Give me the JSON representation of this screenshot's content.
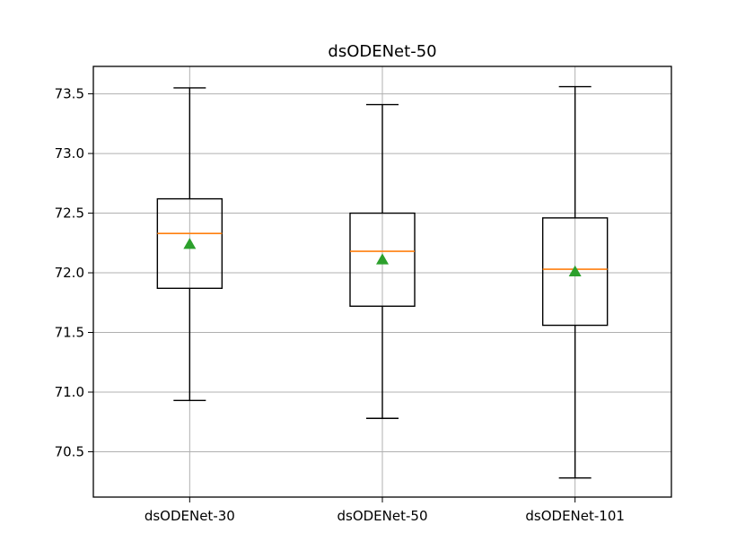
{
  "chart_data": {
    "type": "box",
    "title": "dsODENet-50",
    "xlabel": "",
    "ylabel": "",
    "ylim": [
      70.12,
      73.73
    ],
    "grid": true,
    "yticks": [
      "70.5",
      "71.0",
      "71.5",
      "72.0",
      "72.5",
      "73.0",
      "73.5"
    ],
    "categories": [
      "dsODENet-30",
      "dsODENet-50",
      "dsODENet-101"
    ],
    "boxes": [
      {
        "whisker_low": 70.93,
        "q1": 71.87,
        "median": 72.33,
        "q3": 72.62,
        "whisker_high": 73.55,
        "mean": 72.24
      },
      {
        "whisker_low": 70.78,
        "q1": 71.72,
        "median": 72.18,
        "q3": 72.5,
        "whisker_high": 73.41,
        "mean": 72.11
      },
      {
        "whisker_low": 70.28,
        "q1": 71.56,
        "median": 72.03,
        "q3": 72.46,
        "whisker_high": 73.56,
        "mean": 72.01
      }
    ],
    "colors": {
      "box": "#000000",
      "median": "#ff7f0e",
      "mean": "#2ca02c",
      "grid": "#b0b0b0"
    }
  }
}
